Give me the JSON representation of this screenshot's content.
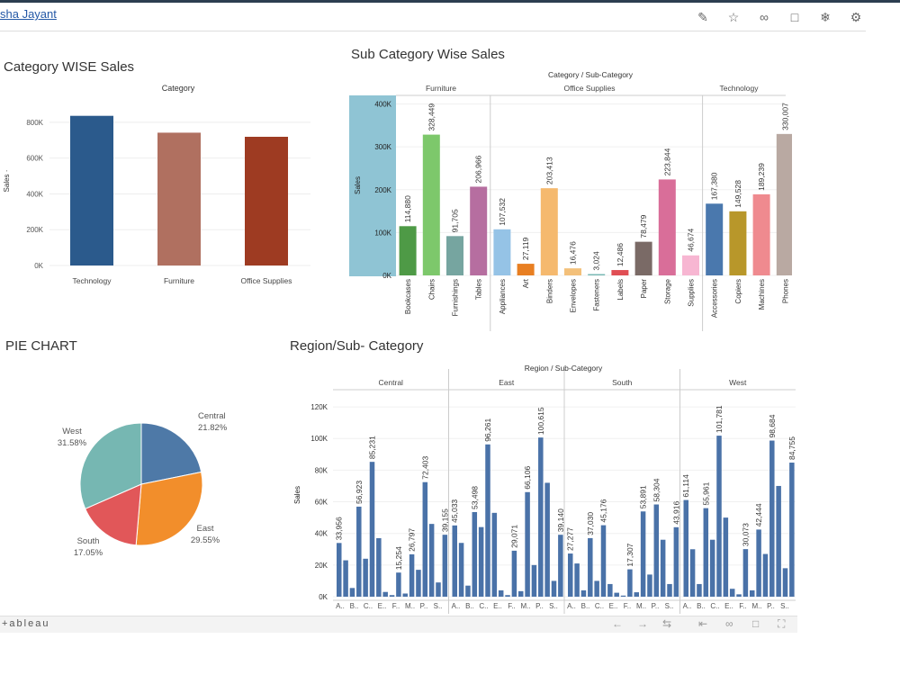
{
  "header": {
    "author": "sha Jayant",
    "icons": [
      "edit-icon",
      "star-icon",
      "share-icon",
      "comment-icon",
      "badge-icon",
      "gear-icon"
    ]
  },
  "category_chart": {
    "title": "Category WISE Sales",
    "header": "Category",
    "ylabel": "Sales ·",
    "chart_data": {
      "type": "bar",
      "categories": [
        "Technology",
        "Furniture",
        "Office Supplies"
      ],
      "values": [
        836154,
        741999,
        719047
      ],
      "colors": [
        "#2b5a8c",
        "#b07060",
        "#9e3b22"
      ],
      "yticks": [
        "0K",
        "200K",
        "400K",
        "600K",
        "800K"
      ],
      "ylim": [
        0,
        900000
      ]
    }
  },
  "subcat_chart": {
    "title": "Sub Category Wise Sales",
    "header": "Category / Sub-Category",
    "groups": [
      "Furniture",
      "Office Supplies",
      "Technology"
    ],
    "ylabel": "Sales",
    "chart_data": {
      "type": "bar",
      "categories": [
        "Bookcases",
        "Chairs",
        "Furnishings",
        "Tables",
        "Appliances",
        "Art",
        "Binders",
        "Envelopes",
        "Fasteners",
        "Labels",
        "Paper",
        "Storage",
        "Supplies",
        "Accessories",
        "Copiers",
        "Machines",
        "Phones"
      ],
      "values": [
        114880,
        328449,
        91705,
        206966,
        107532,
        27119,
        203413,
        16476,
        3024,
        12486,
        78479,
        223844,
        46674,
        167380,
        149528,
        189239,
        330007
      ],
      "labels": [
        "114,880",
        "328,449",
        "91,705",
        "206,966",
        "107,532",
        "27,119",
        "203,413",
        "16,476",
        "3,024",
        "12,486",
        "78,479",
        "223,844",
        "46,674",
        "167,380",
        "149,528",
        "189,239",
        "330,007"
      ],
      "colors": [
        "#4e9a46",
        "#7dc86b",
        "#76a5a0",
        "#b66ea0",
        "#95c3e6",
        "#e87f22",
        "#f5b96e",
        "#f3c07a",
        "#76b7b2",
        "#e04e54",
        "#7a6a66",
        "#d96e99",
        "#f7b6d2",
        "#4a78ad",
        "#b8972a",
        "#ef8a8f",
        "#b9a9a2"
      ],
      "yticks": [
        "0K",
        "100K",
        "200K",
        "300K",
        "400K"
      ],
      "ylim": [
        0,
        420000
      ]
    }
  },
  "pie_chart": {
    "title": "PIE CHART",
    "chart_data": {
      "type": "pie",
      "slices": [
        {
          "name": "Central",
          "value": 21.82,
          "label": "21.82%",
          "color": "#4e79a7"
        },
        {
          "name": "East",
          "value": 29.55,
          "label": "29.55%",
          "color": "#f28e2b"
        },
        {
          "name": "South",
          "value": 17.05,
          "label": "17.05%",
          "color": "#e15759"
        },
        {
          "name": "West",
          "value": 31.58,
          "label": "31.58%",
          "color": "#76b7b2"
        }
      ]
    }
  },
  "region_chart": {
    "title": "Region/Sub- Category",
    "header": "Region / Sub-Category",
    "regions": [
      "Central",
      "East",
      "South",
      "West"
    ],
    "ylabel": "Sales",
    "chart_data": {
      "type": "bar",
      "color": "#4a72a8",
      "yticks": [
        "0K",
        "20K",
        "40K",
        "60K",
        "80K",
        "100K",
        "120K"
      ],
      "ylim": [
        0,
        128000
      ],
      "series": [
        {
          "name": "Central",
          "values": [
            33956,
            23000,
            5500,
            56923,
            24000,
            85231,
            37000,
            3000,
            1000,
            15254,
            2000,
            26797,
            17000,
            72403,
            46000,
            9000,
            39155
          ],
          "labels": {
            "0": "33,956",
            "3": "56,923",
            "5": "85,231",
            "9": "15,254",
            "11": "26,797",
            "13": "72,403",
            "16": "39,155"
          }
        },
        {
          "name": "East",
          "values": [
            45033,
            34000,
            7000,
            53498,
            44000,
            96261,
            53000,
            4000,
            1000,
            29071,
            3500,
            66106,
            20000,
            100615,
            72000,
            10000,
            39140
          ],
          "labels": {
            "0": "45,033",
            "3": "53,498",
            "5": "96,261",
            "9": "29,071",
            "11": "66,106",
            "13": "100,615",
            "16": "39,140"
          }
        },
        {
          "name": "South",
          "values": [
            27277,
            21000,
            4000,
            37030,
            10000,
            45176,
            8000,
            2500,
            700,
            17307,
            2800,
            53891,
            14000,
            58304,
            36000,
            8000,
            43916
          ],
          "labels": {
            "0": "27,277",
            "3": "37,030",
            "5": "45,176",
            "9": "17,307",
            "11": "53,891",
            "13": "58,304",
            "16": "43,916"
          }
        },
        {
          "name": "West",
          "values": [
            61114,
            30000,
            8000,
            55961,
            36000,
            101781,
            50000,
            5000,
            1500,
            30073,
            4000,
            42444,
            27000,
            98684,
            70000,
            18000,
            84755
          ],
          "labels": {
            "0": "61,114",
            "3": "55,961",
            "5": "101,781",
            "9": "30,073",
            "11": "42,444",
            "13": "98,684",
            "16": "84,755"
          }
        }
      ],
      "xticks": [
        "A..",
        "B..",
        "C..",
        "E..",
        "F..",
        "M..",
        "P..",
        "S.."
      ]
    }
  },
  "footer": {
    "logo": "+ableau"
  }
}
